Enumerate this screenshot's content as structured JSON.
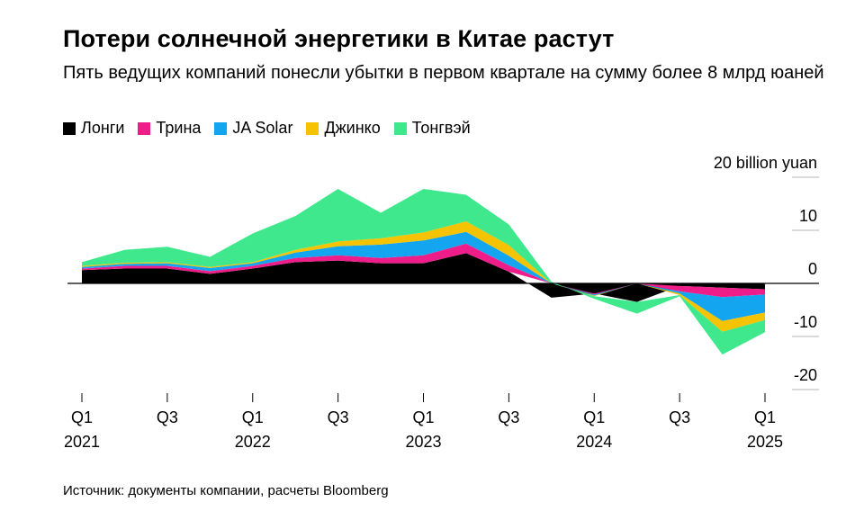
{
  "title": "Потери солнечной энергетики в Китае растут",
  "subtitle": "Пять ведущих компаний понесли убытки в первом квартале на сумму более 8 млрд юаней",
  "source": "Источник: документы компании, расчеты Bloomberg",
  "chart_data": {
    "type": "area",
    "stacked": true,
    "ylabel": "20 billion yuan",
    "ylim": [
      -22,
      22
    ],
    "y_ticks": [
      "20 billion yuan",
      "10",
      "0",
      "-10",
      "-20"
    ],
    "y_tick_values": [
      20,
      10,
      0,
      -10,
      -20
    ],
    "x": [
      "Q1 2021",
      "Q2 2021",
      "Q3 2021",
      "Q4 2021",
      "Q1 2022",
      "Q2 2022",
      "Q3 2022",
      "Q4 2022",
      "Q1 2023",
      "Q2 2023",
      "Q3 2023",
      "Q4 2023",
      "Q1 2024",
      "Q2 2024",
      "Q3 2024",
      "Q4 2024",
      "Q1 2025"
    ],
    "x_tick_labels": [
      {
        "index": 0,
        "line1": "Q1",
        "line2": "2021"
      },
      {
        "index": 2,
        "line1": "Q3",
        "line2": ""
      },
      {
        "index": 4,
        "line1": "Q1",
        "line2": "2022"
      },
      {
        "index": 6,
        "line1": "Q3",
        "line2": ""
      },
      {
        "index": 8,
        "line1": "Q1",
        "line2": "2023"
      },
      {
        "index": 10,
        "line1": "Q3",
        "line2": ""
      },
      {
        "index": 12,
        "line1": "Q1",
        "line2": "2024"
      },
      {
        "index": 14,
        "line1": "Q3",
        "line2": ""
      },
      {
        "index": 16,
        "line1": "Q1",
        "line2": "2025"
      }
    ],
    "legend_position": "top-left",
    "series": [
      {
        "name": "Лонги",
        "color": "#000000",
        "values": [
          2.5,
          2.8,
          2.8,
          1.8,
          2.8,
          4.0,
          4.3,
          3.8,
          3.8,
          5.7,
          2.2,
          -2.7,
          -1.9,
          -3.5,
          -0.5,
          -0.8,
          -1.1
        ]
      },
      {
        "name": "Трина",
        "color": "#ee1d8a",
        "values": [
          0.3,
          0.5,
          0.5,
          0.5,
          0.5,
          0.8,
          1.0,
          1.0,
          1.5,
          1.8,
          1.2,
          0.0,
          -0.2,
          0.0,
          -1.0,
          -1.8,
          -1.0
        ]
      },
      {
        "name": "JA Solar",
        "color": "#14a5f0",
        "values": [
          0.3,
          0.4,
          0.5,
          0.6,
          0.5,
          1.0,
          1.7,
          2.5,
          2.8,
          2.2,
          1.8,
          0.0,
          -0.2,
          0.0,
          -0.4,
          -4.5,
          -3.4
        ]
      },
      {
        "name": "Джинко",
        "color": "#f5c300",
        "values": [
          0.2,
          0.2,
          0.2,
          0.2,
          0.2,
          0.5,
          0.9,
          1.2,
          1.5,
          2.0,
          2.0,
          0.0,
          -0.1,
          0.0,
          -0.3,
          -2.0,
          -1.4
        ]
      },
      {
        "name": "Тонгвэй",
        "color": "#3fe88c",
        "values": [
          0.7,
          2.4,
          2.9,
          1.9,
          5.4,
          6.4,
          9.9,
          4.8,
          8.2,
          5.0,
          3.9,
          0.3,
          -0.5,
          -2.2,
          -0.2,
          -4.3,
          -2.3
        ]
      }
    ]
  }
}
